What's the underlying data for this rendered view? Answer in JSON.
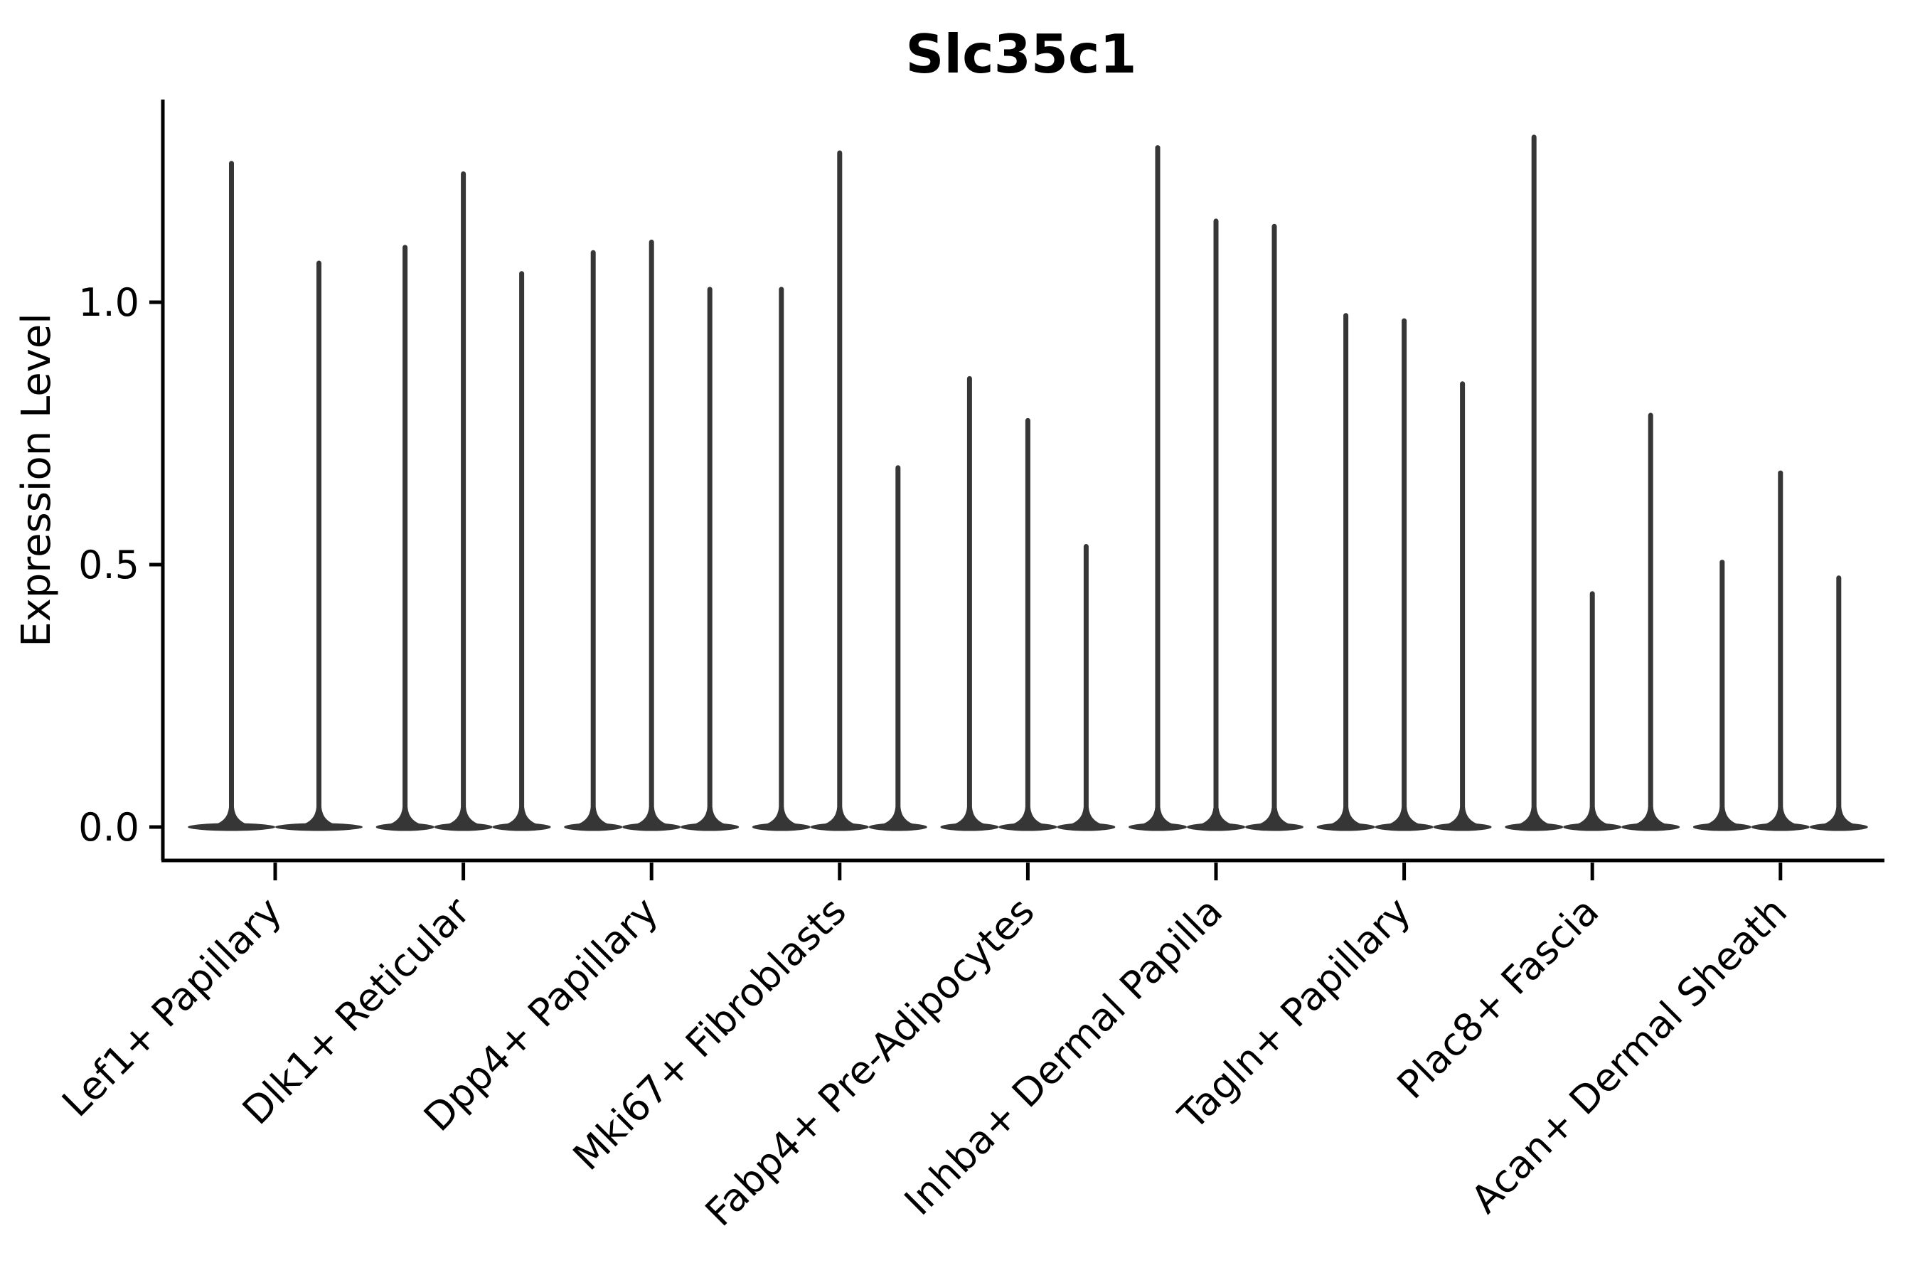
{
  "title": "Slc35c1",
  "y_axis": {
    "label": "Expression Level",
    "tick_labels": [
      "1.0",
      "0.5",
      "0.0"
    ]
  },
  "colors": {
    "violin_fill": "#363636",
    "axis": "#000000",
    "background": "#ffffff"
  },
  "chart_data": {
    "type": "violin",
    "title": "Slc35c1",
    "xlabel": "",
    "ylabel": "Expression Level",
    "ylim": [
      -0.07,
      1.45
    ],
    "yticks": [
      0.0,
      0.5,
      1.0
    ],
    "ytick_labels": [
      "0.0",
      "0.5",
      "1.0"
    ],
    "grid": false,
    "legend": "none",
    "description": "Seurat-style single-gene violin plot; each violin is a wide flat density at expression 0 with a thin needle spike reaching the maximum expression value.",
    "categories": [
      "Lef1+ Papillary",
      "Dlk1+ Reticular",
      "Dpp4+ Papillary",
      "Mki67+ Fibroblasts",
      "Fabp4+ Pre-Adipocytes",
      "Inhba+ Dermal Papilla",
      "Tagln+ Papillary",
      "Plac8+ Fascia",
      "Acan+ Dermal Sheath"
    ],
    "series": [
      {
        "category": "Lef1+ Papillary",
        "violin_max_values": [
          1.27,
          1.08
        ]
      },
      {
        "category": "Dlk1+ Reticular",
        "violin_max_values": [
          1.11,
          1.25,
          1.06
        ]
      },
      {
        "category": "Dpp4+ Papillary",
        "violin_max_values": [
          1.1,
          1.12,
          1.03
        ]
      },
      {
        "category": "Mki67+ Fibroblasts",
        "violin_max_values": [
          1.03,
          1.29,
          0.69
        ]
      },
      {
        "category": "Fabp4+ Pre-Adipocytes",
        "violin_max_values": [
          0.86,
          0.78,
          0.54
        ]
      },
      {
        "category": "Inhba+ Dermal Papilla",
        "violin_max_values": [
          1.3,
          1.16,
          1.15
        ]
      },
      {
        "category": "Tagln+ Papillary",
        "violin_max_values": [
          0.98,
          0.97,
          0.85
        ]
      },
      {
        "category": "Plac8+ Fascia",
        "violin_max_values": [
          1.32,
          0.45,
          0.79
        ]
      },
      {
        "category": "Acan+ Dermal Sheath",
        "violin_max_values": [
          0.51,
          0.68,
          0.48
        ]
      }
    ],
    "violin_body_value": 0.0
  }
}
